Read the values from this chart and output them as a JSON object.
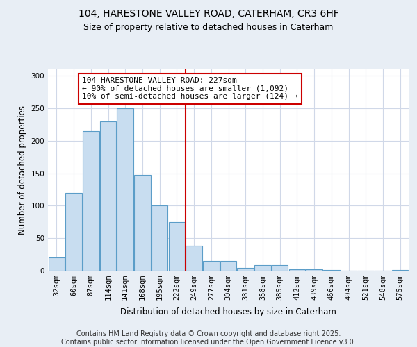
{
  "title": "104, HARESTONE VALLEY ROAD, CATERHAM, CR3 6HF",
  "subtitle": "Size of property relative to detached houses in Caterham",
  "xlabel": "Distribution of detached houses by size in Caterham",
  "ylabel": "Number of detached properties",
  "categories": [
    "32sqm",
    "60sqm",
    "87sqm",
    "114sqm",
    "141sqm",
    "168sqm",
    "195sqm",
    "222sqm",
    "249sqm",
    "277sqm",
    "304sqm",
    "331sqm",
    "358sqm",
    "385sqm",
    "412sqm",
    "439sqm",
    "466sqm",
    "494sqm",
    "521sqm",
    "548sqm",
    "575sqm"
  ],
  "values": [
    20,
    120,
    215,
    230,
    250,
    148,
    100,
    75,
    38,
    15,
    15,
    4,
    9,
    9,
    2,
    2,
    1,
    0,
    0,
    0,
    1
  ],
  "bar_color": "#c8ddf0",
  "bar_edge_color": "#5b9dc8",
  "vline_x": 7.5,
  "vline_color": "#cc0000",
  "annotation_text": "104 HARESTONE VALLEY ROAD: 227sqm\n← 90% of detached houses are smaller (1,092)\n10% of semi-detached houses are larger (124) →",
  "annotation_box_color": "#cc0000",
  "ylim": [
    0,
    310
  ],
  "yticks": [
    0,
    50,
    100,
    150,
    200,
    250,
    300
  ],
  "bg_color": "#e8eef5",
  "plot_bg_color": "#ffffff",
  "grid_color": "#d0d8e8",
  "footer": "Contains HM Land Registry data © Crown copyright and database right 2025.\nContains public sector information licensed under the Open Government Licence v3.0.",
  "title_fontsize": 10,
  "subtitle_fontsize": 9,
  "axis_label_fontsize": 8.5,
  "tick_fontsize": 7.5,
  "annotation_fontsize": 8,
  "footer_fontsize": 7
}
